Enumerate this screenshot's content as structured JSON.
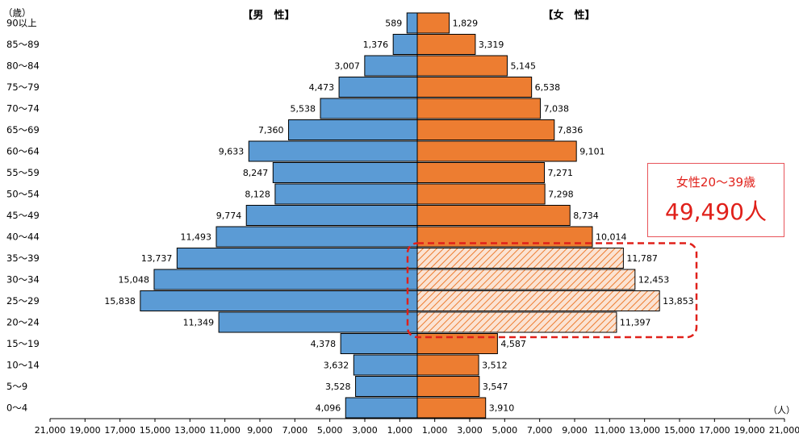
{
  "chart_data": {
    "type": "bar",
    "orientation": "horizontal",
    "subtype": "population-pyramid",
    "y_unit_label": "（歳）",
    "x_unit_label": "（人）",
    "male_header": "【男　性】",
    "female_header": "【女　性】",
    "categories": [
      "0〜4",
      "5〜9",
      "10〜14",
      "15〜19",
      "20〜24",
      "25〜29",
      "30〜34",
      "35〜39",
      "40〜44",
      "45〜49",
      "50〜54",
      "55〜59",
      "60〜64",
      "65〜69",
      "70〜74",
      "75〜79",
      "80〜84",
      "85〜89",
      "90以上"
    ],
    "series": [
      {
        "name": "男性",
        "color": "#5b9bd5",
        "values": [
          4096,
          3528,
          3632,
          4378,
          11349,
          15838,
          15048,
          13737,
          11493,
          9774,
          8128,
          8247,
          9633,
          7360,
          5538,
          4473,
          3007,
          1376,
          589
        ]
      },
      {
        "name": "女性",
        "color": "#ed7d31",
        "values": [
          3910,
          3547,
          3512,
          4587,
          11397,
          13853,
          12453,
          11787,
          10014,
          8734,
          7298,
          7271,
          9101,
          7836,
          7038,
          6538,
          5145,
          3319,
          1829
        ]
      }
    ],
    "value_labels": {
      "male": [
        "4,096",
        "3,528",
        "3,632",
        "4,378",
        "11,349",
        "15,838",
        "15,048",
        "13,737",
        "11,493",
        "9,774",
        "8,128",
        "8,247",
        "9,633",
        "7,360",
        "5,538",
        "4,473",
        "3,007",
        "1,376",
        "589"
      ],
      "female": [
        "3,910",
        "3,547",
        "3,512",
        "4,587",
        "11,397",
        "13,853",
        "12,453",
        "11,787",
        "10,014",
        "8,734",
        "7,298",
        "7,271",
        "9,101",
        "7,836",
        "7,038",
        "6,538",
        "5,145",
        "3,319",
        "1,829"
      ]
    },
    "highlight": {
      "series": "女性",
      "categories": [
        "20〜24",
        "25〜29",
        "30〜34",
        "35〜39"
      ],
      "style": "hatched",
      "outline_color": "#e0201a"
    },
    "xlim": [
      -21000,
      21000
    ],
    "x_tick_labels": [
      "21,000",
      "19,000",
      "17,000",
      "15,000",
      "13,000",
      "11,000",
      "9,000",
      "7,000",
      "5,000",
      "3,000",
      "1,000",
      "1,000",
      "3,000",
      "5,000",
      "7,000",
      "9,000",
      "11,000",
      "13,000",
      "15,000",
      "17,000",
      "19,000",
      "21,000"
    ],
    "grid": false
  },
  "callout": {
    "line1": "女性20〜39歳",
    "line2": "49,490人",
    "color": "#e0201a"
  }
}
